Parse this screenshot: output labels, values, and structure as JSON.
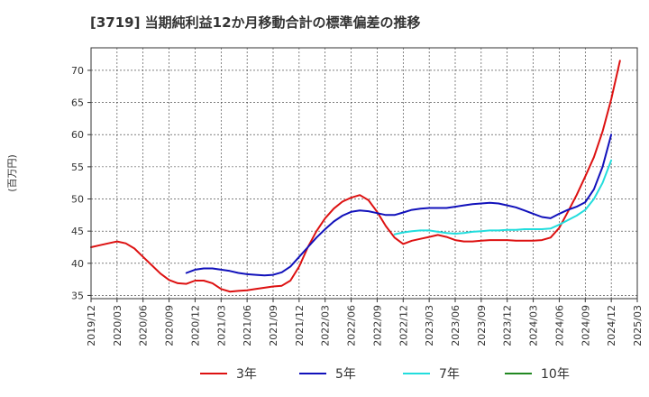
{
  "chart_data": {
    "type": "line",
    "title": "[3719]  当期純利益12か月移動合計の標準偏差の推移",
    "ylabel": "(百万円)",
    "xlabel": "",
    "ylim": [
      34.5,
      73.5
    ],
    "yticks": [
      35,
      40,
      45,
      50,
      55,
      60,
      65,
      70
    ],
    "xlim": [
      "2019-12",
      "2025-03"
    ],
    "xticks": [
      "2019/12",
      "2020/03",
      "2020/06",
      "2020/09",
      "2020/12",
      "2021/03",
      "2021/06",
      "2021/09",
      "2021/12",
      "2022/03",
      "2022/06",
      "2022/09",
      "2022/12",
      "2023/03",
      "2023/06",
      "2023/09",
      "2023/12",
      "2024/03",
      "2024/06",
      "2024/09",
      "2024/12",
      "2025/03"
    ],
    "grid": true,
    "legend_position": "bottom",
    "series": [
      {
        "name": "3年",
        "color": "#dd1111",
        "start": "2019-12",
        "values": [
          42.5,
          42.8,
          43.1,
          43.4,
          43.1,
          42.3,
          41.0,
          39.7,
          38.4,
          37.4,
          36.9,
          36.8,
          37.3,
          37.3,
          36.9,
          36.0,
          35.6,
          35.7,
          35.8,
          36.0,
          36.2,
          36.4,
          36.5,
          37.3,
          39.5,
          42.5,
          45.0,
          47.0,
          48.5,
          49.6,
          50.2,
          50.6,
          49.8,
          48.0,
          45.8,
          44.0,
          43.0,
          43.5,
          43.8,
          44.1,
          44.4,
          44.1,
          43.6,
          43.4,
          43.4,
          43.5,
          43.6,
          43.6,
          43.6,
          43.5,
          43.5,
          43.5,
          43.6,
          44.0,
          45.5,
          48.0,
          50.6,
          53.5,
          56.5,
          60.5,
          65.5,
          71.5
        ]
      },
      {
        "name": "5年",
        "color": "#1111bb",
        "start": "2020-11",
        "values": [
          38.5,
          39.0,
          39.2,
          39.2,
          39.0,
          38.8,
          38.5,
          38.3,
          38.2,
          38.1,
          38.2,
          38.6,
          39.5,
          41.0,
          42.5,
          44.0,
          45.3,
          46.5,
          47.4,
          48.0,
          48.2,
          48.1,
          47.8,
          47.5,
          47.5,
          47.9,
          48.3,
          48.5,
          48.6,
          48.6,
          48.6,
          48.8,
          49.0,
          49.2,
          49.3,
          49.4,
          49.3,
          49.0,
          48.7,
          48.2,
          47.7,
          47.2,
          47.0,
          47.7,
          48.3,
          48.8,
          49.5,
          51.5,
          55.0,
          60.0
        ]
      },
      {
        "name": "7年",
        "color": "#22dddd",
        "start": "2022-11",
        "values": [
          44.5,
          44.8,
          45.0,
          45.1,
          45.1,
          44.9,
          44.7,
          44.6,
          44.7,
          44.9,
          45.0,
          45.1,
          45.1,
          45.2,
          45.2,
          45.3,
          45.3,
          45.3,
          45.4,
          46.0,
          46.7,
          47.4,
          48.3,
          50.0,
          52.5,
          56.0
        ]
      },
      {
        "name": "10年",
        "color": "#228822",
        "start": "2024-12",
        "values": []
      }
    ]
  }
}
